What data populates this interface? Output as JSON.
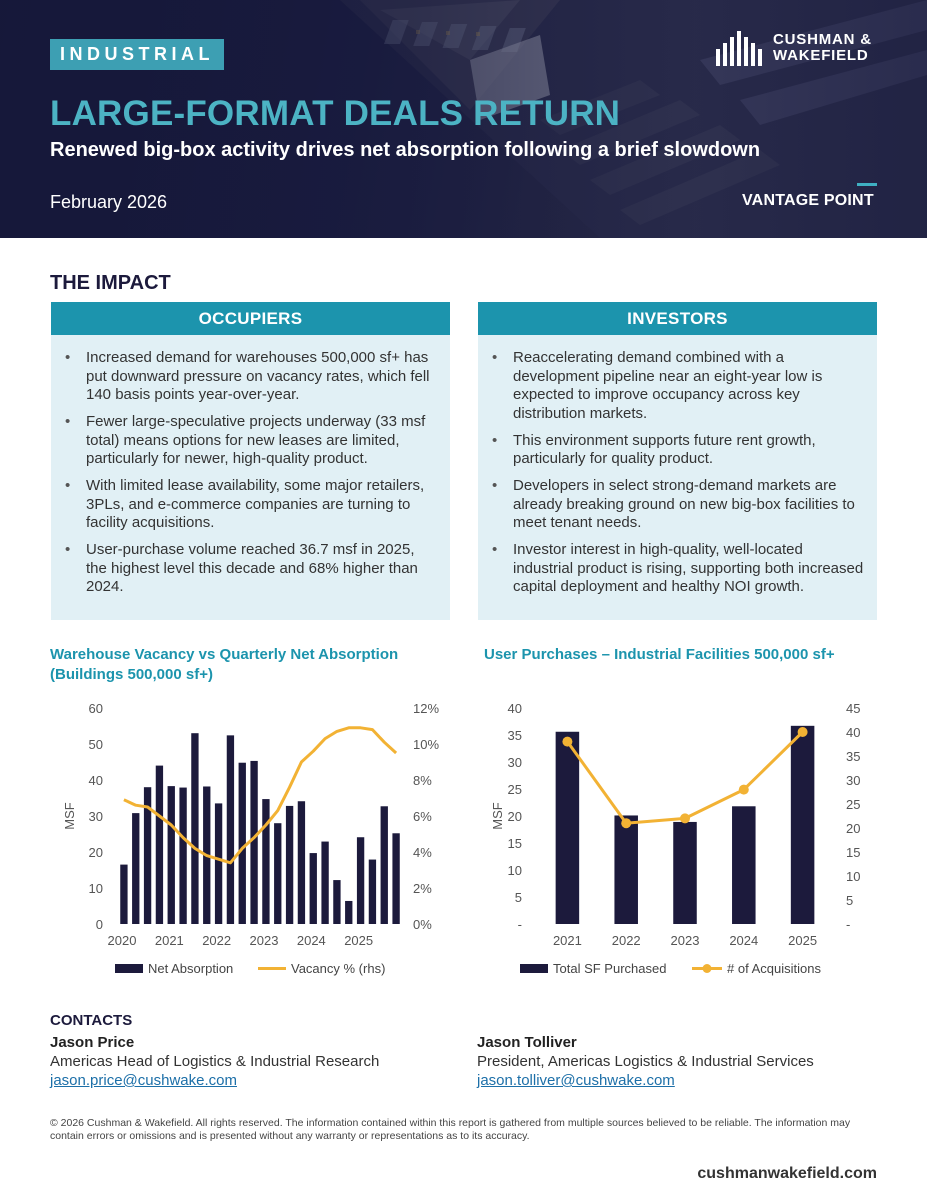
{
  "hero": {
    "sector_tag": "INDUSTRIAL",
    "title": "LARGE-FORMAT DEALS RETURN",
    "subtitle": "Renewed big-box activity drives net absorption following a brief slowdown",
    "date": "February 2026",
    "brand_line1": "CUSHMAN &",
    "brand_line2": "WAKEFIELD",
    "series_name": "VANTAGE POINT"
  },
  "impact": {
    "heading": "THE IMPACT",
    "occupiers": {
      "title": "OCCUPIERS",
      "bullets": [
        "Increased demand for warehouses 500,000 sf+ has put downward pressure on vacancy rates, which fell 140 basis points year-over-year.",
        "Fewer large-speculative projects underway (33 msf total) means options for new leases are limited, particularly for newer, high-quality product.",
        "With limited lease availability, some major retailers, 3PLs, and e-commerce companies are turning to facility acquisitions.",
        "User-purchase volume reached 36.7 msf in 2025, the highest level this decade and 68% higher than 2024."
      ]
    },
    "investors": {
      "title": "INVESTORS",
      "bullets": [
        "Reaccelerating demand combined with a development pipeline near an eight-year low is expected to improve occupancy across key distribution markets.",
        "This environment supports future rent growth, particularly for quality product.",
        "Developers in select strong-demand markets are already breaking ground on new big-box facilities to meet tenant needs.",
        "Investor interest in high-quality, well-located industrial product is rising, supporting both increased capital deployment and healthy NOI growth."
      ]
    }
  },
  "colors": {
    "navy": "#1c1a3c",
    "teal": "#1c94ad",
    "gold": "#f2b234",
    "panel_bg": "#e1f0f5"
  },
  "chart_data": [
    {
      "type": "bar+line",
      "title_line1": "Warehouse Vacancy vs Quarterly Net Absorption",
      "title_line2": "(Buildings 500,000 sf+)",
      "ylabel": "MSF",
      "ylim": [
        0,
        60
      ],
      "yticks": [
        "0",
        "10",
        "20",
        "30",
        "40",
        "50",
        "60"
      ],
      "y2lim": [
        0,
        12
      ],
      "y2ticks": [
        "0%",
        "2%",
        "4%",
        "6%",
        "8%",
        "10%",
        "12%"
      ],
      "xticks": [
        "2020",
        "2021",
        "2022",
        "2023",
        "2024",
        "2025"
      ],
      "series": [
        {
          "name": "Net Absorption",
          "kind": "bar",
          "axis": "left",
          "values": [
            16.5,
            30.8,
            38.0,
            44.0,
            38.3,
            37.9,
            53.0,
            38.2,
            33.5,
            52.4,
            44.8,
            45.3,
            34.7,
            28.0,
            32.8,
            34.1,
            19.7,
            22.9,
            12.2,
            6.4,
            24.1,
            17.9,
            32.7,
            25.2
          ]
        },
        {
          "name": "Vacancy % (rhs)",
          "kind": "line",
          "axis": "right",
          "values": [
            6.9,
            6.6,
            6.5,
            6.0,
            5.5,
            4.8,
            4.2,
            3.8,
            3.6,
            3.4,
            4.2,
            4.8,
            5.5,
            6.3,
            7.6,
            9.0,
            9.6,
            10.3,
            10.7,
            10.9,
            10.9,
            10.8,
            10.1,
            9.5
          ]
        }
      ]
    },
    {
      "type": "bar+line",
      "title": "User Purchases – Industrial Facilities 500,000 sf+",
      "ylabel": "MSF",
      "ylim": [
        0,
        40
      ],
      "yticks": [
        "-",
        "5",
        "10",
        "15",
        "20",
        "25",
        "30",
        "35",
        "40"
      ],
      "y2lim": [
        0,
        45
      ],
      "y2ticks": [
        "-",
        "5",
        "10",
        "15",
        "20",
        "25",
        "30",
        "35",
        "40",
        "45"
      ],
      "categories": [
        "2021",
        "2022",
        "2023",
        "2024",
        "2025"
      ],
      "series": [
        {
          "name": "Total SF Purchased",
          "kind": "bar",
          "axis": "left",
          "values": [
            35.6,
            20.1,
            18.9,
            21.8,
            36.7
          ]
        },
        {
          "name": "# of Acquisitions",
          "kind": "line",
          "axis": "right",
          "values": [
            38,
            21,
            22,
            28,
            40
          ]
        }
      ]
    }
  ],
  "contacts": {
    "heading": "CONTACTS",
    "people": [
      {
        "name": "Jason Price",
        "role": "Americas Head of Logistics & Industrial Research",
        "email": "jason.price@cushwake.com"
      },
      {
        "name": "Jason Tolliver",
        "role": "President, Americas Logistics & Industrial Services",
        "email": "jason.tolliver@cushwake.com"
      }
    ]
  },
  "footer": {
    "disclaimer": "© 2026 Cushman & Wakefield. All rights reserved. The information contained within this report is gathered from multiple sources believed to be reliable. The information may contain errors or omissions and is presented without any warranty or representations as to its accuracy.",
    "site": "cushmanwakefield.com"
  }
}
